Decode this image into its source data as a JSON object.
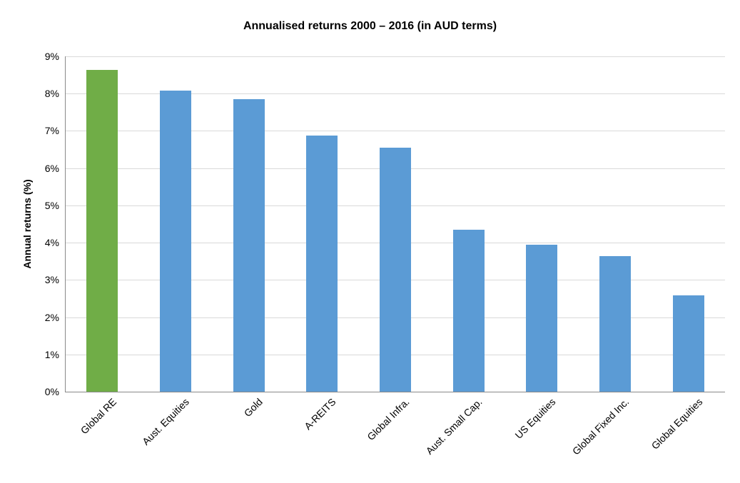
{
  "chart_data": {
    "type": "bar",
    "title": "Annualised returns 2000 – 2016 (in AUD terms)",
    "xlabel": "",
    "ylabel": "Annual returns (%)",
    "categories": [
      "Global RE",
      "Aust. Equities",
      "Gold",
      "A-REITS",
      "Global Infra.",
      "Aust. Small Cap.",
      "US Equities",
      "Global Fixed Inc.",
      "Global Equities"
    ],
    "values": [
      8.63,
      8.08,
      7.85,
      6.87,
      6.55,
      4.35,
      3.94,
      3.64,
      2.59
    ],
    "bar_colors": [
      "#70AD47",
      "#5B9BD5",
      "#5B9BD5",
      "#5B9BD5",
      "#5B9BD5",
      "#5B9BD5",
      "#5B9BD5",
      "#5B9BD5",
      "#5B9BD5"
    ],
    "ylim": [
      0,
      9
    ],
    "yticks": [
      "0%",
      "1%",
      "2%",
      "3%",
      "4%",
      "5%",
      "6%",
      "7%",
      "8%",
      "9%"
    ],
    "grid": "horizontal-only",
    "legend": "none",
    "x_label_rotation_deg": 45
  },
  "colors": {
    "bar_highlight": "#70AD47",
    "bar_default": "#5B9BD5",
    "gridline": "#D9D9D9",
    "axis_line": "#898989",
    "text": "#000000",
    "background": "#FFFFFF"
  }
}
